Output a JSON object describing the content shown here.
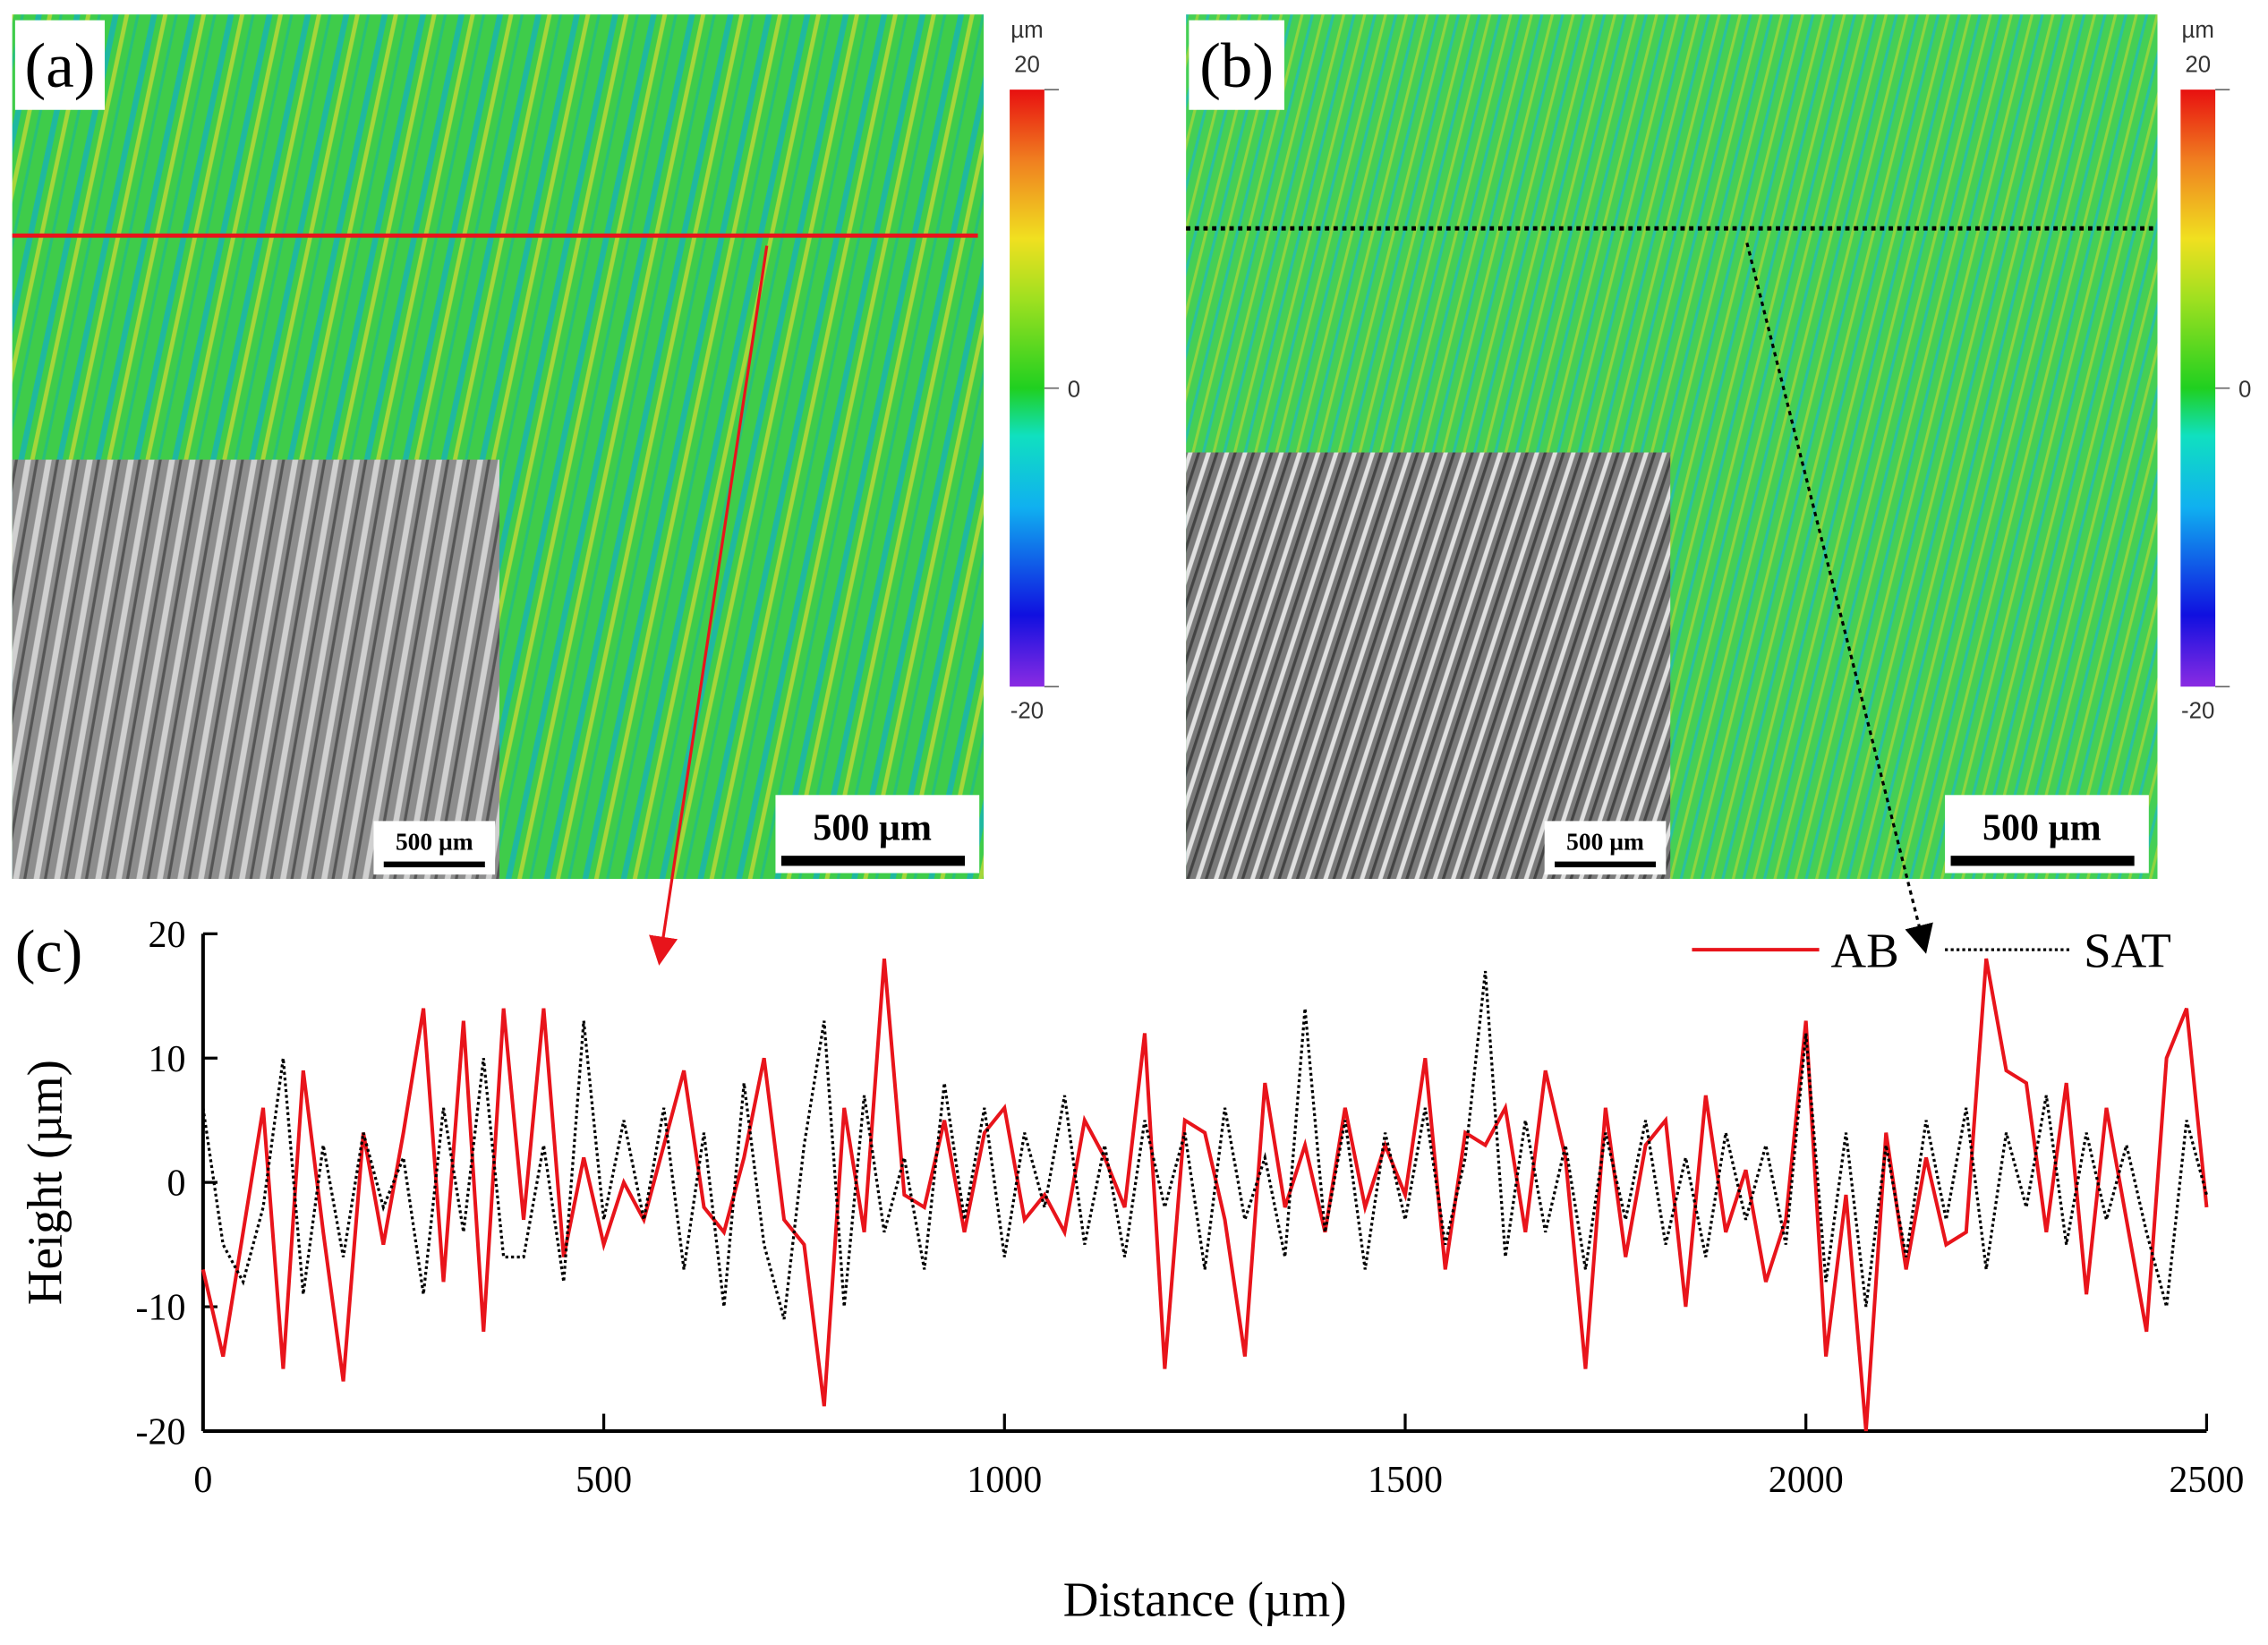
{
  "panels": [
    {
      "label": "(a)",
      "colorbar": {
        "unit": "µm",
        "lim": [
          -20,
          20
        ],
        "ticks": [
          20,
          0,
          -20
        ]
      },
      "scale_bar": "500 µm",
      "inset_scale_bar": "500 µm"
    },
    {
      "label": "(b)",
      "colorbar": {
        "unit": "µm",
        "lim": [
          -20,
          20
        ],
        "ticks": [
          20,
          0,
          -20
        ]
      },
      "scale_bar": "500 µm",
      "inset_scale_bar": "500 µm"
    }
  ],
  "chart_data": {
    "type": "line",
    "label": "(c)",
    "xlabel": "Distance (µm)",
    "ylabel": "Height (µm)",
    "x": [
      0,
      25,
      50,
      75,
      100,
      125,
      150,
      175,
      200,
      225,
      250,
      275,
      300,
      325,
      350,
      375,
      400,
      425,
      450,
      475,
      500,
      525,
      550,
      575,
      600,
      625,
      650,
      675,
      700,
      725,
      750,
      775,
      800,
      825,
      850,
      875,
      900,
      925,
      950,
      975,
      1000,
      1025,
      1050,
      1075,
      1100,
      1125,
      1150,
      1175,
      1200,
      1225,
      1250,
      1275,
      1300,
      1325,
      1350,
      1375,
      1400,
      1425,
      1450,
      1475,
      1500,
      1525,
      1550,
      1575,
      1600,
      1625,
      1650,
      1675,
      1700,
      1725,
      1750,
      1775,
      1800,
      1825,
      1850,
      1875,
      1900,
      1925,
      1950,
      1975,
      2000,
      2025,
      2050,
      2075,
      2100,
      2125,
      2150,
      2175,
      2200,
      2225,
      2250,
      2275,
      2300,
      2325,
      2350,
      2375,
      2400,
      2425,
      2450,
      2475,
      2500
    ],
    "series": [
      {
        "name": "AB",
        "color": "#e8141b",
        "dash": "solid",
        "values": [
          -7,
          -14,
          -4,
          6,
          -15,
          9,
          -4,
          -16,
          4,
          -5,
          4,
          14,
          -8,
          13,
          -12,
          14,
          -3,
          14,
          -6,
          2,
          -5,
          0,
          -3,
          3,
          9,
          -2,
          -4,
          2,
          10,
          -3,
          -5,
          -18,
          6,
          -4,
          18,
          -1,
          -2,
          5,
          -4,
          4,
          6,
          -3,
          -1,
          -4,
          5,
          2,
          -2,
          12,
          -15,
          5,
          4,
          -3,
          -14,
          8,
          -2,
          3,
          -4,
          6,
          -2,
          3,
          -1,
          10,
          -7,
          4,
          3,
          6,
          -4,
          9,
          2,
          -15,
          6,
          -6,
          3,
          5,
          -10,
          7,
          -4,
          1,
          -8,
          -3,
          13,
          -14,
          -1,
          -20,
          4,
          -7,
          2,
          -5,
          -4,
          18,
          9,
          8,
          -4,
          8,
          -9,
          6,
          -3,
          -12,
          10,
          14,
          -2
        ]
      },
      {
        "name": "SAT",
        "color": "#000000",
        "dash": "dotted",
        "values": [
          6,
          -5,
          -8,
          -2,
          10,
          -9,
          3,
          -6,
          4,
          -2,
          2,
          -9,
          6,
          -4,
          10,
          -6,
          -6,
          3,
          -8,
          13,
          -3,
          5,
          -3,
          6,
          -7,
          4,
          -10,
          8,
          -5,
          -11,
          3,
          13,
          -10,
          7,
          -4,
          2,
          -7,
          8,
          -3,
          6,
          -6,
          4,
          -2,
          7,
          -5,
          3,
          -6,
          5,
          -2,
          4,
          -7,
          6,
          -3,
          2,
          -6,
          14,
          -4,
          5,
          -7,
          4,
          -3,
          6,
          -5,
          2,
          17,
          -6,
          5,
          -4,
          3,
          -7,
          4,
          -3,
          5,
          -5,
          2,
          -6,
          4,
          -3,
          3,
          -5,
          12,
          -8,
          4,
          -10,
          3,
          -6,
          5,
          -3,
          6,
          -7,
          4,
          -2,
          7,
          -5,
          4,
          -3,
          3,
          -4,
          -10,
          5,
          -1
        ]
      }
    ],
    "xlim": [
      0,
      2500
    ],
    "xticks": [
      0,
      500,
      1000,
      1500,
      2000,
      2500
    ],
    "ylim": [
      -20,
      20
    ],
    "yticks": [
      -20,
      -10,
      0,
      10,
      20
    ],
    "legend": "upper right"
  }
}
